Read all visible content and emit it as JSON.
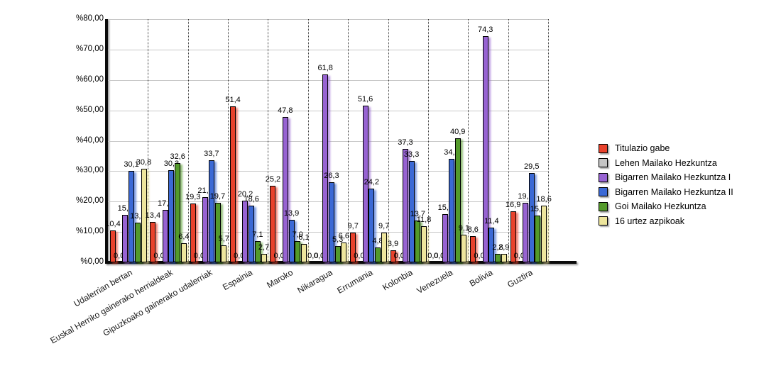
{
  "chart_data": {
    "type": "bar",
    "title": "",
    "xlabel": "",
    "ylabel": "",
    "ylim": [
      0,
      80
    ],
    "y_tick_step": 10,
    "y_tick_labels": [
      "%0,00",
      "%10,00",
      "%20,00",
      "%30,00",
      "%40,00",
      "%50,00",
      "%60,00",
      "%70,00",
      "%80,00"
    ],
    "grid": "horizontal-solid-gray, vertical-dotted-category-separators",
    "legend_position": "right",
    "value_label_decimal_separator": ",",
    "categories": [
      "Udalerrian bertan",
      "Euskal Herriko gainerako herrialdeak",
      "Gipuzkoako gainerako udalerriak",
      "Espainia",
      "Maroko",
      "Nikaragua",
      "Errumania",
      "Kolonbia",
      "Venezuela",
      "Bolivia",
      "Guztira"
    ],
    "series": [
      {
        "name": "Titulazio gabe",
        "color": "#e8422c",
        "values": [
          10.4,
          13.4,
          19.3,
          51.4,
          25.2,
          0.0,
          9.7,
          3.9,
          0.0,
          8.6,
          16.9
        ]
      },
      {
        "name": "Lehen Mailako Hezkuntza",
        "color": "#c4c4c4",
        "values": [
          0.0,
          0.0,
          0.0,
          0.0,
          0.0,
          0.0,
          0.0,
          0.0,
          0.0,
          0.0,
          0.0
        ]
      },
      {
        "name": "Bigarren Mailako Hezkuntza I",
        "color": "#9763d2",
        "values": [
          15.6,
          17.2,
          21.5,
          20.2,
          47.8,
          61.8,
          51.6,
          37.3,
          15.9,
          74.3,
          19.7
        ]
      },
      {
        "name": "Bigarren Mailako Hezkuntza II",
        "color": "#3b69d5",
        "values": [
          30.1,
          30.3,
          33.7,
          18.6,
          13.9,
          26.3,
          24.2,
          33.3,
          34.1,
          11.4,
          29.5
        ]
      },
      {
        "name": "Goi Mailako Hezkuntza",
        "color": "#549a2b",
        "values": [
          13.1,
          32.6,
          19.7,
          7.1,
          7.0,
          5.3,
          4.8,
          13.7,
          40.9,
          2.8,
          15.3
        ]
      },
      {
        "name": "16 urtez azpikoak",
        "color": "#ede59c",
        "values": [
          30.8,
          6.4,
          5.7,
          2.7,
          6.1,
          6.6,
          9.7,
          11.8,
          9.1,
          2.9,
          18.6
        ]
      }
    ]
  }
}
